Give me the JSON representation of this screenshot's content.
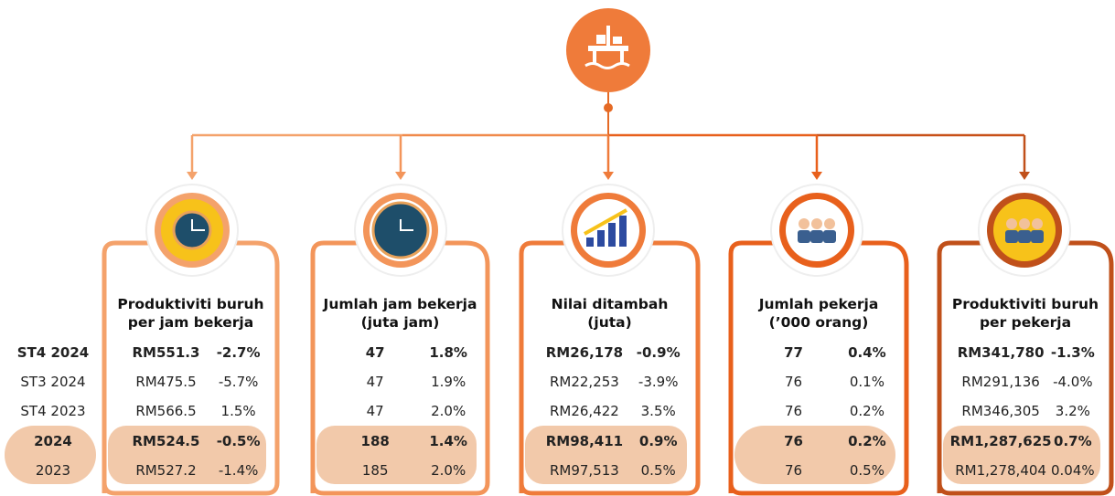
{
  "row_labels": [
    "ST4 2024",
    "ST3 2024",
    "ST4 2023",
    "2024",
    "2023"
  ],
  "cards": [
    {
      "title_lines": [
        "Produktiviti buruh",
        "per jam bekerja"
      ],
      "rows": [
        [
          "RM551.3",
          "-2.7%"
        ],
        [
          "RM475.5",
          "-5.7%"
        ],
        [
          "RM566.5",
          "1.5%"
        ],
        [
          "RM524.5",
          "-0.5%"
        ],
        [
          "RM527.2",
          "-1.4%"
        ]
      ]
    },
    {
      "title_lines": [
        "Jumlah jam bekerja",
        "(juta jam)"
      ],
      "rows": [
        [
          "47",
          "1.8%"
        ],
        [
          "47",
          "1.9%"
        ],
        [
          "47",
          "2.0%"
        ],
        [
          "188",
          "1.4%"
        ],
        [
          "185",
          "2.0%"
        ]
      ]
    },
    {
      "title_lines": [
        "Nilai ditambah",
        "(juta)"
      ],
      "rows": [
        [
          "RM26,178",
          "-0.9%"
        ],
        [
          "RM22,253",
          "-3.9%"
        ],
        [
          "RM26,422",
          "3.5%"
        ],
        [
          "RM98,411",
          "0.9%"
        ],
        [
          "RM97,513",
          "0.5%"
        ]
      ]
    },
    {
      "title_lines": [
        "Jumlah pekerja",
        "(’000 orang)"
      ],
      "rows": [
        [
          "77",
          "0.4%"
        ],
        [
          "76",
          "0.1%"
        ],
        [
          "76",
          "0.2%"
        ],
        [
          "76",
          "0.2%"
        ],
        [
          "76",
          "0.5%"
        ]
      ]
    },
    {
      "title_lines": [
        "Produktiviti buruh",
        "per pekerja"
      ],
      "rows": [
        [
          "RM341,780",
          "-1.3%"
        ],
        [
          "RM291,136",
          "-4.0%"
        ],
        [
          "RM346,305",
          "3.2%"
        ],
        [
          "RM1,287,625",
          "0.7%"
        ],
        [
          "RM1,278,404",
          "0.04%"
        ]
      ]
    }
  ]
}
